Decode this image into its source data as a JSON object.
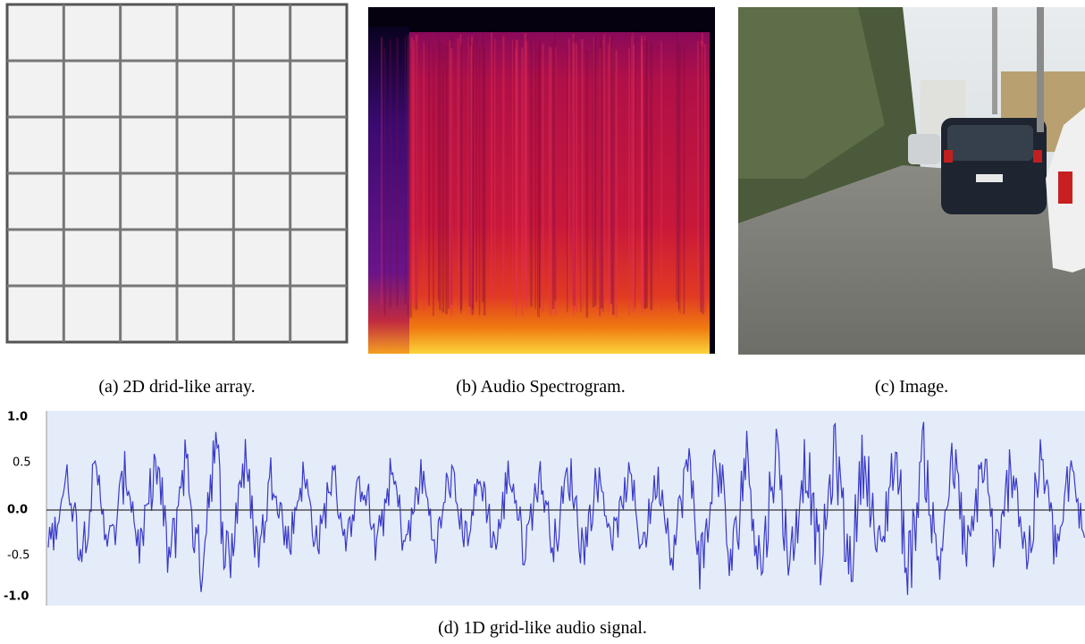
{
  "panels": [
    {
      "caption": "(a) 2D drid-like array."
    },
    {
      "caption": "(b) Audio Spectrogram."
    },
    {
      "caption": "(c) Image."
    },
    {
      "caption": "(d) 1D grid-like audio signal.",
      "axis_labels": [
        "1.0",
        "0.5",
        "0.0",
        "-0.5",
        "-1.0"
      ]
    }
  ]
}
